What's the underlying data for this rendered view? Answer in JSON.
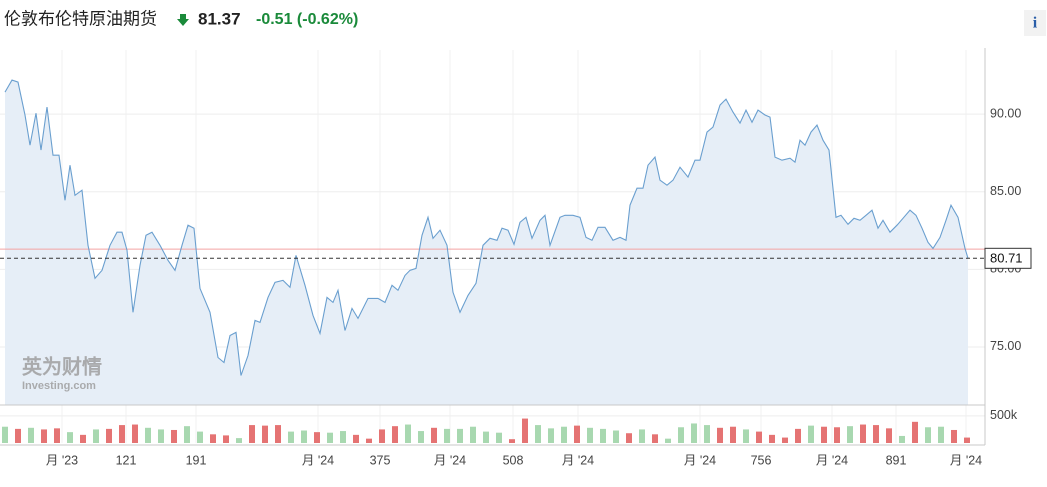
{
  "header": {
    "title": "伦敦布伦特原油期货",
    "price": "81.37",
    "change": "-0.51 (-0.62%)",
    "info": "i",
    "watermark": "英为财情",
    "watermark_sub": "Investing.com"
  },
  "chart_data": [
    {
      "type": "line",
      "area": true,
      "color": "#6a9fcf",
      "fill": "#e6eef7",
      "grid": true,
      "x": [
        0,
        7,
        13,
        20,
        25,
        31,
        36,
        42,
        48,
        54,
        60,
        65,
        70,
        77,
        83,
        90,
        97,
        105,
        112,
        117,
        122,
        128,
        135,
        141,
        147,
        155,
        163,
        170,
        177,
        183,
        189,
        195,
        205,
        213,
        219,
        225,
        231,
        236,
        243,
        250,
        255,
        263,
        270,
        278,
        285,
        291,
        300,
        308,
        315,
        322,
        328,
        333,
        340,
        347,
        353,
        363,
        373,
        380,
        387,
        393,
        400,
        405,
        411,
        417,
        423,
        428,
        435,
        442,
        448,
        455,
        463,
        471,
        478,
        485,
        492,
        497,
        503,
        509,
        515,
        521,
        527,
        535,
        540,
        545,
        555,
        560,
        568,
        575,
        581,
        587,
        593,
        600,
        608,
        615,
        621,
        625,
        632,
        638,
        643,
        650,
        655,
        662,
        668,
        675,
        683,
        690,
        695,
        702,
        708,
        715,
        721,
        728,
        735,
        741,
        747,
        753,
        760,
        765,
        770,
        777,
        785,
        790,
        795,
        800,
        806,
        812,
        818,
        824,
        831,
        836,
        843,
        849,
        855,
        861,
        867,
        873,
        878,
        885,
        892,
        898,
        905,
        911,
        917,
        923,
        928,
        935,
        941,
        946,
        953,
        960,
        963
      ],
      "values": [
        91.42,
        92.19,
        92.06,
        89.94,
        88.0,
        90.06,
        87.68,
        90.45,
        87.35,
        87.35,
        84.45,
        86.71,
        84.77,
        85.1,
        81.55,
        79.42,
        79.94,
        81.55,
        82.39,
        82.39,
        81.23,
        77.23,
        80.26,
        82.19,
        82.39,
        81.55,
        80.58,
        79.94,
        81.55,
        82.84,
        82.65,
        78.77,
        77.23,
        74.32,
        74.0,
        75.74,
        75.94,
        73.16,
        74.45,
        76.71,
        76.58,
        78.19,
        79.16,
        79.29,
        78.84,
        80.9,
        78.97,
        77.03,
        75.87,
        78.19,
        77.87,
        78.65,
        76.06,
        77.48,
        76.84,
        78.13,
        78.13,
        77.87,
        78.97,
        78.65,
        79.61,
        79.94,
        80.06,
        82.19,
        83.35,
        82.0,
        82.52,
        81.55,
        78.52,
        77.23,
        78.32,
        79.1,
        81.55,
        82.0,
        81.87,
        82.65,
        82.52,
        81.61,
        83.03,
        83.35,
        82.0,
        83.16,
        83.48,
        81.55,
        83.35,
        83.48,
        83.48,
        83.35,
        82.06,
        81.87,
        82.71,
        82.71,
        81.87,
        82.06,
        81.87,
        84.13,
        85.23,
        85.23,
        86.71,
        87.23,
        85.74,
        85.42,
        85.74,
        86.58,
        85.94,
        87.03,
        87.03,
        88.84,
        89.16,
        90.58,
        90.97,
        90.13,
        89.42,
        90.26,
        89.48,
        90.26,
        89.94,
        89.81,
        87.23,
        87.03,
        87.16,
        86.9,
        88.32,
        88.0,
        88.84,
        89.29,
        88.32,
        87.68,
        83.35,
        83.48,
        82.9,
        83.29,
        83.16,
        83.48,
        83.81,
        82.65,
        83.16,
        82.39,
        82.84,
        83.29,
        83.81,
        83.48,
        82.65,
        81.74,
        81.35,
        82.06,
        83.16,
        84.13,
        83.35,
        81.35,
        80.71
      ],
      "xlim": [
        0,
        963
      ],
      "ylim": [
        71.26,
        94.13
      ],
      "yticks": [
        {
          "value": 75,
          "label": "75.00"
        },
        {
          "value": 80,
          "label": "80.00"
        },
        {
          "value": 85,
          "label": "85.00"
        },
        {
          "value": 90,
          "label": "90.00"
        }
      ],
      "ref_line": 81.3,
      "ref_color": "#f4a3a3"
    },
    {
      "type": "bar",
      "grid": true,
      "x": [
        0,
        13,
        26,
        39,
        52,
        65,
        78,
        91,
        104,
        117,
        130,
        143,
        156,
        169,
        182,
        195,
        208,
        221,
        234,
        247,
        260,
        273,
        286,
        299,
        312,
        325,
        338,
        351,
        364,
        377,
        390,
        403,
        416,
        429,
        442,
        455,
        468,
        481,
        494,
        507,
        520,
        533,
        546,
        559,
        572,
        585,
        598,
        611,
        624,
        637,
        650,
        663,
        676,
        689,
        702,
        715,
        728,
        741,
        754,
        767,
        780,
        793,
        806,
        819,
        832,
        845,
        858,
        871,
        884,
        897,
        910,
        923,
        936,
        949,
        962
      ],
      "values": [
        300000,
        260000,
        280000,
        250000,
        270000,
        200000,
        150000,
        250000,
        260000,
        330000,
        340000,
        280000,
        250000,
        240000,
        310000,
        210000,
        160000,
        140000,
        90000,
        330000,
        320000,
        330000,
        210000,
        230000,
        200000,
        190000,
        220000,
        150000,
        80000,
        250000,
        310000,
        340000,
        220000,
        280000,
        260000,
        260000,
        300000,
        210000,
        190000,
        70000,
        450000,
        330000,
        270000,
        300000,
        320000,
        280000,
        260000,
        230000,
        180000,
        250000,
        160000,
        80000,
        290000,
        360000,
        330000,
        280000,
        300000,
        250000,
        210000,
        150000,
        100000,
        260000,
        320000,
        300000,
        290000,
        310000,
        340000,
        330000,
        270000,
        130000,
        390000,
        290000,
        300000,
        240000,
        100000
      ],
      "colors": [
        "#a8d8b0",
        "#e57373",
        "#a8d8b0",
        "#e57373",
        "#e57373",
        "#a8d8b0",
        "#e57373",
        "#a8d8b0",
        "#e57373",
        "#e57373",
        "#e57373",
        "#a8d8b0",
        "#a8d8b0",
        "#e57373",
        "#a8d8b0",
        "#a8d8b0",
        "#e57373",
        "#e57373",
        "#a8d8b0",
        "#e57373",
        "#e57373",
        "#e57373",
        "#a8d8b0",
        "#a8d8b0",
        "#e57373",
        "#a8d8b0",
        "#a8d8b0",
        "#e57373",
        "#e57373",
        "#e57373",
        "#e57373",
        "#a8d8b0",
        "#a8d8b0",
        "#e57373",
        "#a8d8b0",
        "#a8d8b0",
        "#a8d8b0",
        "#a8d8b0",
        "#a8d8b0",
        "#e57373",
        "#e57373",
        "#a8d8b0",
        "#a8d8b0",
        "#a8d8b0",
        "#e57373",
        "#a8d8b0",
        "#a8d8b0",
        "#a8d8b0",
        "#e57373",
        "#a8d8b0",
        "#e57373",
        "#a8d8b0",
        "#a8d8b0",
        "#a8d8b0",
        "#a8d8b0",
        "#e57373",
        "#e57373",
        "#a8d8b0",
        "#e57373",
        "#e57373",
        "#e57373",
        "#e57373",
        "#a8d8b0",
        "#e57373",
        "#e57373",
        "#a8d8b0",
        "#e57373",
        "#e57373",
        "#e57373",
        "#a8d8b0",
        "#e57373",
        "#a8d8b0",
        "#a8d8b0",
        "#e57373",
        "#e57373"
      ],
      "xlim": [
        0,
        963
      ],
      "ylim": [
        0,
        700000
      ],
      "yticks": [
        {
          "value": 500000,
          "label": "500k"
        }
      ],
      "xticks": [
        {
          "value": 57,
          "label": "月 '23"
        },
        121,
        191,
        {
          "value": 313,
          "label": "月 '24"
        },
        375,
        {
          "value": 445,
          "label": "月 '24"
        },
        508,
        {
          "value": 573,
          "label": "月 '24"
        },
        {
          "value": 695,
          "label": "月 '24"
        },
        756,
        {
          "value": 827,
          "label": "月 '24"
        },
        891,
        {
          "value": 961,
          "label": "月 '24"
        }
      ]
    }
  ]
}
